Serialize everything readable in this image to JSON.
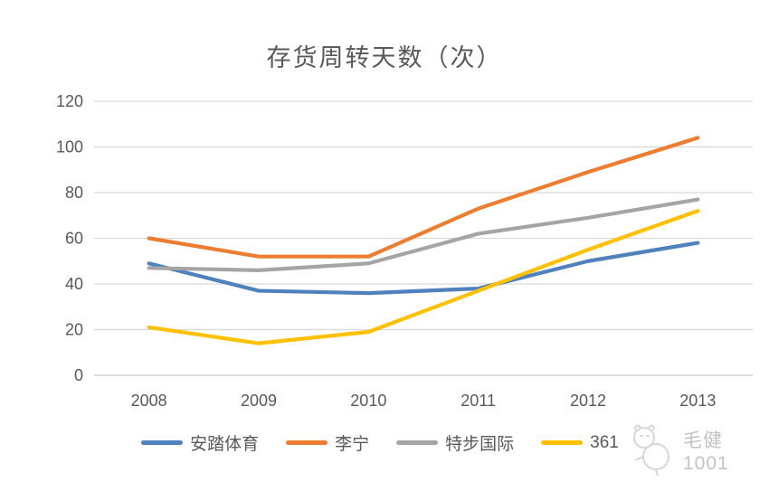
{
  "watermark": {
    "text": "毛健1001"
  },
  "chart_data": {
    "type": "line",
    "title": "存货周转天数（次）",
    "categories": [
      "2008",
      "2009",
      "2010",
      "2011",
      "2012",
      "2013"
    ],
    "series": [
      {
        "name": "安踏体育",
        "color": "#4E81BD",
        "values": [
          49,
          37,
          36,
          38,
          50,
          58
        ]
      },
      {
        "name": "李宁",
        "color": "#ED7D31",
        "values": [
          60,
          52,
          52,
          73,
          89,
          104
        ]
      },
      {
        "name": "特步国际",
        "color": "#A5A5A5",
        "values": [
          47,
          46,
          49,
          62,
          69,
          77
        ]
      },
      {
        "name": "361",
        "color": "#FFC000",
        "values": [
          21,
          14,
          19,
          37,
          55,
          72
        ]
      }
    ],
    "ylim": [
      0,
      120
    ],
    "yticks": [
      0,
      20,
      40,
      60,
      80,
      100,
      120
    ],
    "xlabel": "",
    "ylabel": "",
    "grid": true,
    "legend_position": "bottom",
    "text_color": "#595959",
    "grid_color": "#D9D9D9",
    "axis_line_color": "#C8C8C8"
  }
}
